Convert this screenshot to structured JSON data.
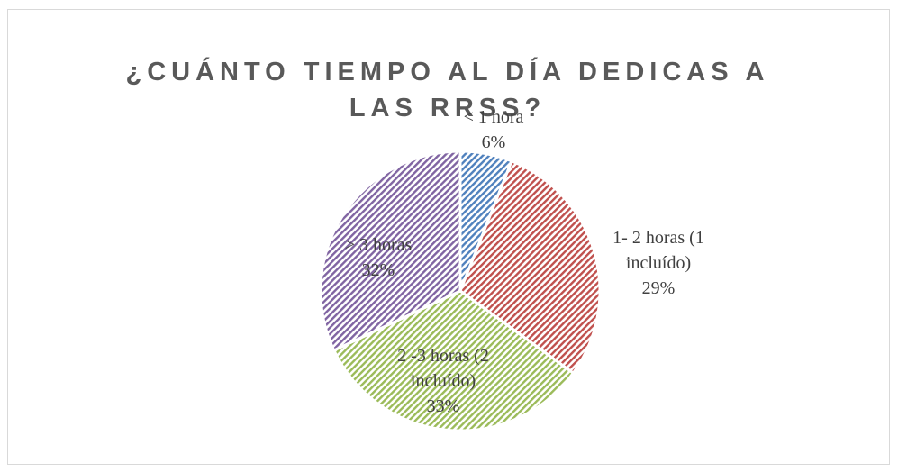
{
  "chart_data": {
    "type": "pie",
    "title": "¿CUÁNTO TIEMPO AL DÍA DEDICAS A LAS RRSS?",
    "categories": [
      "< 1 hora",
      "1- 2 horas (1 incluído)",
      "2 -3 horas (2 incluído)",
      "> 3 horas"
    ],
    "values": [
      6,
      29,
      33,
      32
    ],
    "value_labels": [
      "6%",
      "29%",
      "33%",
      "32%"
    ],
    "colors": [
      "#4f81bd",
      "#c0504d",
      "#9bbb59",
      "#8064a2"
    ]
  }
}
